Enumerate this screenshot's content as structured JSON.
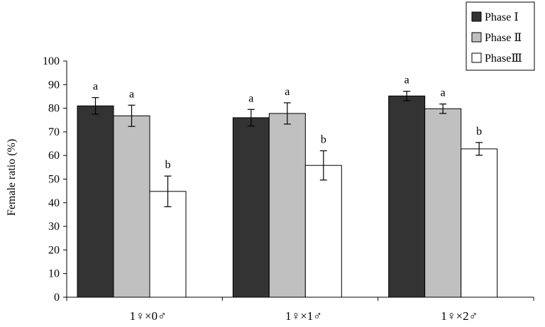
{
  "chart_data": {
    "type": "bar",
    "title": "",
    "xlabel": "",
    "ylabel": "Female ratio (%)",
    "ylim": [
      0,
      100
    ],
    "yticks": [
      0,
      10,
      20,
      30,
      40,
      50,
      60,
      70,
      80,
      90,
      100
    ],
    "grid": false,
    "legend_position": "top-right",
    "categories": [
      "1♀×0♂",
      "1♀×1♂",
      "1♀×2♂"
    ],
    "series": [
      {
        "name": "Phase Ⅰ",
        "color": "#333333",
        "values": [
          81,
          76,
          85.2
        ],
        "errors": [
          3.5,
          3.5,
          2
        ],
        "labels": [
          "a",
          "a",
          "a"
        ]
      },
      {
        "name": "Phase Ⅱ",
        "color": "#c0c0c0",
        "values": [
          76.8,
          77.8,
          79.8
        ],
        "errors": [
          4.5,
          4.5,
          2
        ],
        "labels": [
          "a",
          "a",
          "a"
        ]
      },
      {
        "name": "PhaseⅢ",
        "color": "#ffffff",
        "values": [
          44.8,
          55.8,
          62.8
        ],
        "errors": [
          6.5,
          6.2,
          2.7
        ],
        "labels": [
          "b",
          "b",
          "b"
        ]
      }
    ]
  }
}
